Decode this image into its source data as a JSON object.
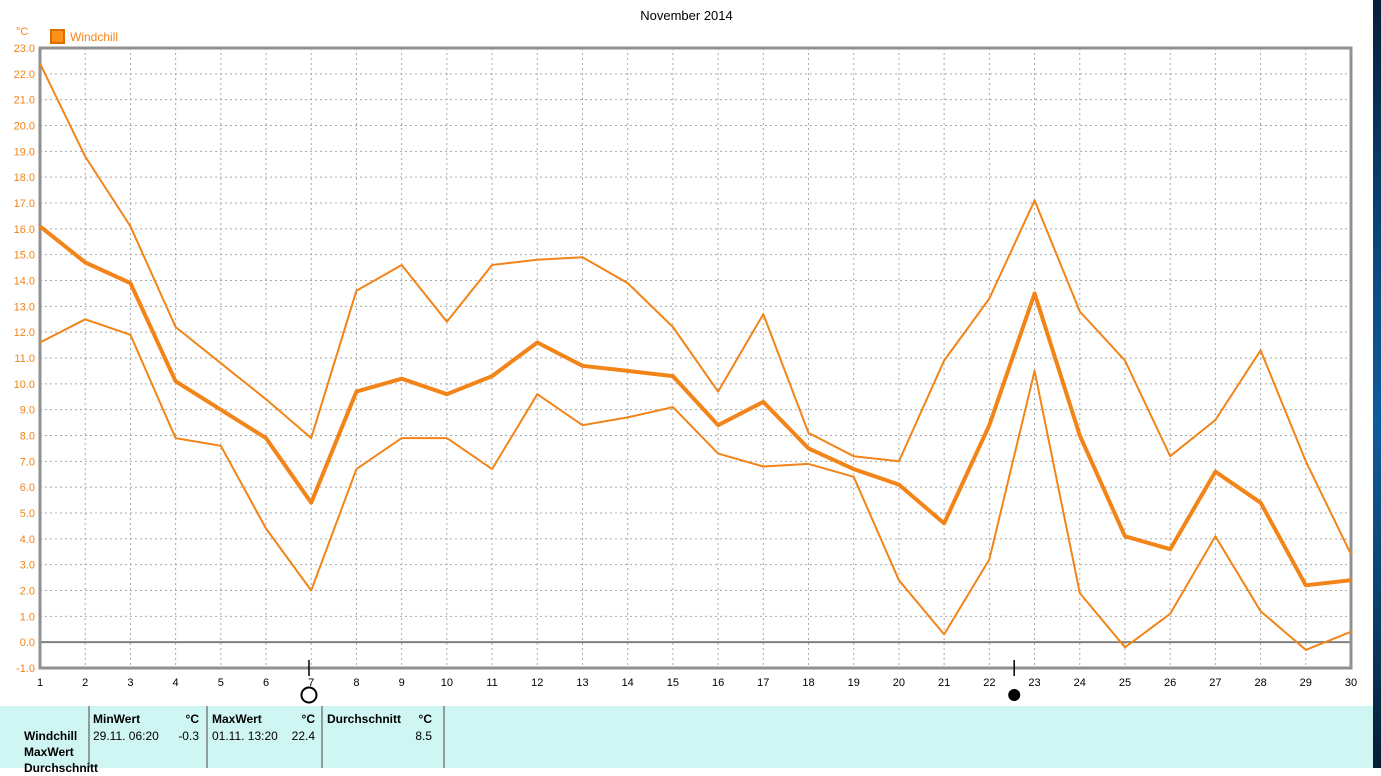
{
  "window": {
    "title": "November 2014"
  },
  "chart": {
    "unit_label": "°C",
    "legend_label": "Windchill"
  },
  "colors": {
    "series_orange": "#F28418",
    "legend_fill": "#FF9018",
    "legend_border": "#D96D00",
    "grid_gray": "#A8A8A8",
    "frame_gray": "#909090",
    "zero_line_gray": "#808080",
    "table_background": "#CFF6F2",
    "text_black": "#000000"
  },
  "chart_data": {
    "type": "line",
    "title": "November 2014",
    "ylabel": "°C",
    "ylim": [
      -1,
      23
    ],
    "y_tick_step": 1,
    "grid": "dashed",
    "legend_position": "top-left",
    "x": [
      1,
      2,
      3,
      4,
      5,
      6,
      7,
      8,
      9,
      10,
      11,
      12,
      13,
      14,
      15,
      16,
      17,
      18,
      19,
      20,
      21,
      22,
      23,
      24,
      25,
      26,
      27,
      28,
      29,
      30
    ],
    "series": [
      {
        "name": "Windchill MaxWert",
        "values": [
          22.4,
          18.8,
          16.1,
          12.2,
          10.8,
          9.4,
          7.9,
          13.6,
          14.6,
          12.4,
          14.6,
          14.8,
          14.9,
          13.9,
          12.2,
          9.7,
          12.7,
          8.1,
          7.2,
          7.0,
          10.9,
          13.3,
          17.1,
          12.8,
          10.9,
          7.2,
          8.6,
          11.3,
          7.0,
          3.4
        ]
      },
      {
        "name": "Windchill Durchschnitt",
        "values": [
          16.1,
          14.7,
          13.9,
          10.1,
          9.0,
          7.9,
          5.4,
          9.7,
          10.2,
          9.6,
          10.3,
          11.6,
          10.7,
          10.5,
          10.3,
          8.4,
          9.3,
          7.5,
          6.7,
          6.1,
          4.6,
          8.4,
          13.5,
          8.0,
          4.1,
          3.6,
          6.6,
          5.4,
          2.2,
          2.4
        ]
      },
      {
        "name": "Windchill MinWert",
        "values": [
          11.6,
          12.5,
          11.9,
          7.9,
          7.6,
          4.4,
          2.0,
          6.7,
          7.9,
          7.9,
          6.7,
          9.6,
          8.4,
          8.7,
          9.1,
          7.3,
          6.8,
          6.9,
          6.4,
          2.4,
          0.3,
          3.2,
          10.5,
          1.9,
          -0.2,
          1.1,
          4.1,
          1.2,
          -0.3,
          0.4
        ]
      }
    ],
    "markers": [
      {
        "day": 6.95,
        "phase": "full-moon",
        "symbol": "open-circle"
      },
      {
        "day": 22.55,
        "phase": "new-moon",
        "symbol": "filled-circle"
      }
    ]
  },
  "stats_table": {
    "row_labels": [
      "Windchill",
      "MaxWert",
      "Durchschnitt"
    ],
    "columns": [
      {
        "header": "MinWert",
        "unit": "°C",
        "datetime": "29.11.  06:20",
        "value": "-0.3"
      },
      {
        "header": "MaxWert",
        "unit": "°C",
        "datetime": "01.11.  13:20",
        "value": "22.4"
      },
      {
        "header": "Durchschnitt",
        "unit": "°C",
        "datetime": "",
        "value": "8.5"
      }
    ]
  }
}
